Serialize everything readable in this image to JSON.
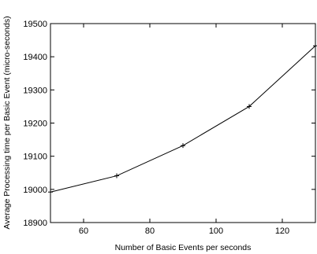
{
  "chart_data": {
    "type": "line",
    "title": "",
    "xlabel": "Number of Basic Events per seconds",
    "ylabel": "Average Processing time per Basic Event (micro-seconds)",
    "xlim": [
      50,
      130
    ],
    "ylim": [
      18900,
      19500
    ],
    "xticks": [
      60,
      80,
      100,
      120
    ],
    "yticks": [
      18900,
      19000,
      19100,
      19200,
      19300,
      19400,
      19500
    ],
    "grid": false,
    "legend": "none",
    "series": [
      {
        "x": [
          50,
          70,
          90,
          110,
          130
        ],
        "y": [
          18992,
          19041,
          19132,
          19250,
          19433
        ],
        "color": "#000000",
        "marker": "plus"
      }
    ]
  }
}
